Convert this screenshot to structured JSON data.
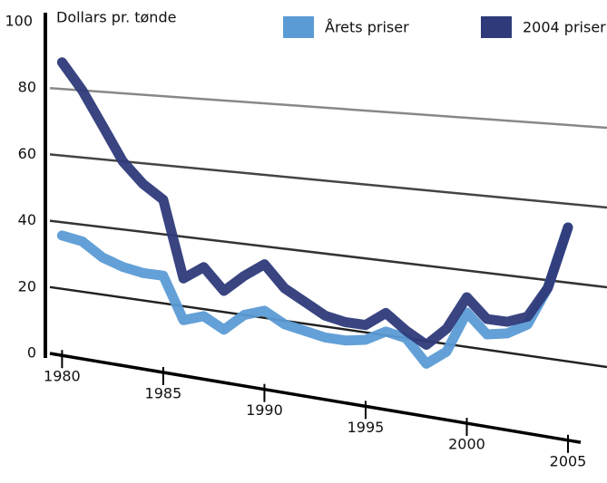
{
  "chart_data": {
    "type": "line",
    "y_label": "Dollars pr. tønde",
    "x": [
      1980,
      1981,
      1982,
      1983,
      1984,
      1985,
      1986,
      1987,
      1988,
      1989,
      1990,
      1991,
      1992,
      1993,
      1994,
      1995,
      1996,
      1997,
      1998,
      1999,
      2000,
      2001,
      2002,
      2003,
      2004,
      2005
    ],
    "series": [
      {
        "name": "Årets priser",
        "color": "#5b9bd5",
        "values": [
          36,
          35,
          31,
          29,
          28,
          28,
          16,
          18,
          15,
          20,
          22,
          19,
          18,
          17,
          17,
          18,
          21,
          20,
          14,
          18,
          29,
          24,
          25,
          28,
          38,
          54
        ]
      },
      {
        "name": "2004 priser",
        "color": "#2e3a7a",
        "values": [
          88,
          80,
          70,
          60,
          54,
          50,
          28,
          32,
          26,
          31,
          35,
          29,
          26,
          23,
          22,
          22,
          26,
          22,
          19,
          24,
          33,
          28,
          28,
          30,
          38,
          54
        ]
      }
    ],
    "xlim": [
      1979.4,
      2006.3
    ],
    "xticks": [
      1980,
      1985,
      1990,
      1995,
      2000,
      2005
    ],
    "ylim": [
      0,
      100
    ],
    "yticks": [
      0,
      20,
      40,
      60,
      80,
      100
    ],
    "grid": true
  }
}
